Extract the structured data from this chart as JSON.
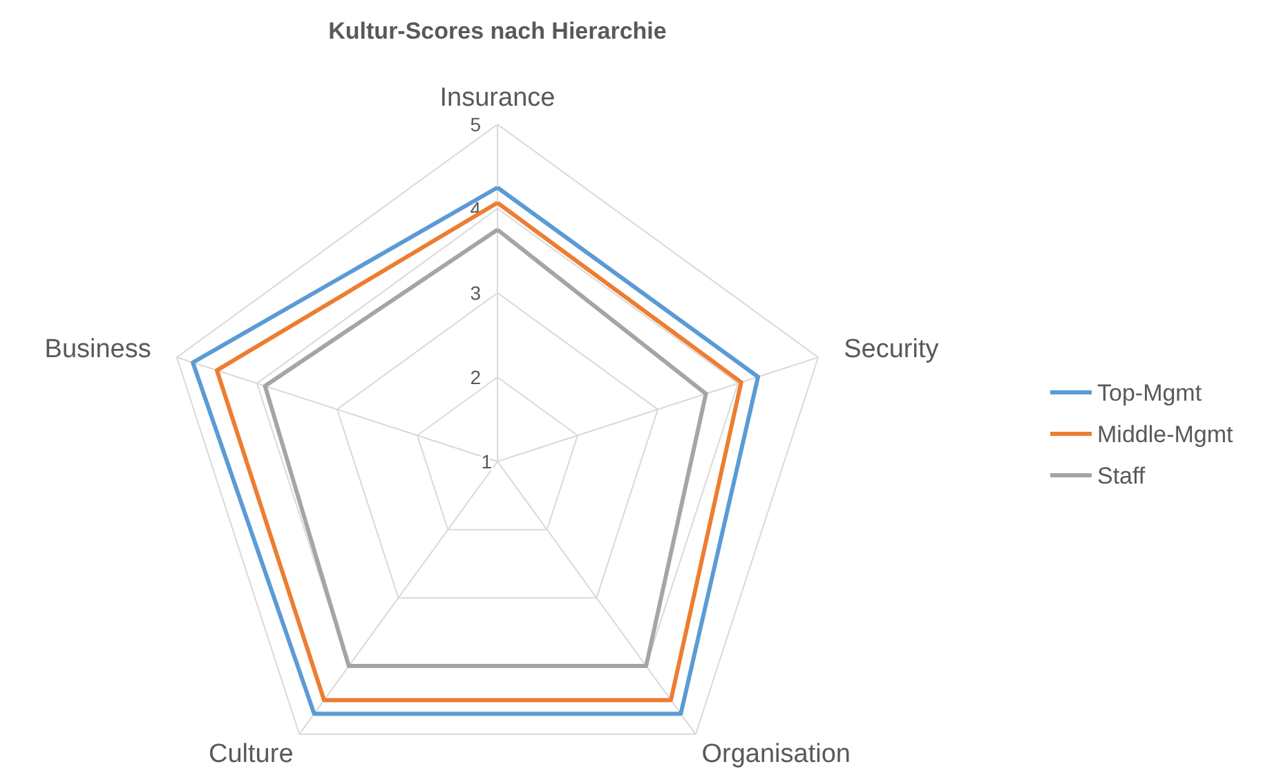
{
  "chart_data": {
    "type": "radar",
    "title": "Kultur-Scores nach Hierarchie",
    "categories": [
      "Insurance",
      "Security",
      "Organisation",
      "Culture",
      "Business"
    ],
    "ylim": [
      1,
      5
    ],
    "yticks": [
      1,
      2,
      3,
      4,
      5
    ],
    "grid": true,
    "legend": "right",
    "marker": "none",
    "line_style": "solid",
    "series": [
      {
        "name": "Top-Mgmt",
        "color": "#5b9bd5",
        "values": [
          4.25,
          4.25,
          4.7,
          4.7,
          4.8
        ]
      },
      {
        "name": "Middle-Mgmt",
        "color": "#ed7d31",
        "values": [
          4.07,
          4.04,
          4.5,
          4.5,
          4.5
        ]
      },
      {
        "name": "Staff",
        "color": "#a5a5a5",
        "values": [
          3.75,
          3.6,
          4.0,
          4.0,
          3.9
        ]
      }
    ]
  }
}
